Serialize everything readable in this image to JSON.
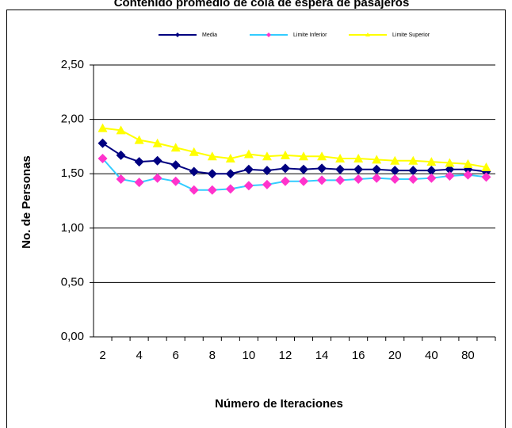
{
  "chart_data": {
    "type": "line",
    "title": "Contenido promedio de cola de espera de pasajeros",
    "xlabel": "Número de Iteraciones",
    "ylabel": "No. de Personas",
    "categories": [
      "2",
      null,
      "4",
      null,
      "6",
      null,
      "8",
      null,
      "10",
      null,
      "12",
      null,
      "14",
      null,
      "16",
      null,
      "20",
      null,
      "40",
      null,
      "80",
      null
    ],
    "series": [
      {
        "name": "Media",
        "color": "#000080",
        "marker_color": "#000080",
        "marker": "diamond",
        "values": [
          1.78,
          1.67,
          1.61,
          1.62,
          1.58,
          1.52,
          1.5,
          1.5,
          1.54,
          1.53,
          1.55,
          1.54,
          1.55,
          1.54,
          1.54,
          1.54,
          1.53,
          1.53,
          1.53,
          1.54,
          1.54,
          1.52
        ]
      },
      {
        "name": "Limite Inferior",
        "color": "#33ccff",
        "marker_color": "#ff33cc",
        "marker": "diamond",
        "values": [
          1.64,
          1.45,
          1.42,
          1.46,
          1.43,
          1.35,
          1.35,
          1.36,
          1.39,
          1.4,
          1.43,
          1.43,
          1.44,
          1.44,
          1.45,
          1.46,
          1.45,
          1.45,
          1.46,
          1.48,
          1.49,
          1.47
        ]
      },
      {
        "name": "Limite Superior",
        "color": "#ffff00",
        "marker_color": "#ffff00",
        "marker": "triangle",
        "values": [
          1.92,
          1.9,
          1.81,
          1.78,
          1.74,
          1.7,
          1.66,
          1.64,
          1.68,
          1.66,
          1.67,
          1.66,
          1.66,
          1.64,
          1.64,
          1.63,
          1.62,
          1.62,
          1.61,
          1.6,
          1.59,
          1.56
        ]
      }
    ],
    "ylim": [
      0,
      2.5
    ],
    "yticks": [
      {
        "value": 0,
        "label": "0,00"
      },
      {
        "value": 0.5,
        "label": "0,50"
      },
      {
        "value": 1,
        "label": "1,00"
      },
      {
        "value": 1.5,
        "label": "1,50"
      },
      {
        "value": 2,
        "label": "2,00"
      },
      {
        "value": 2.5,
        "label": "2,50"
      }
    ],
    "grid": true,
    "legend": "top"
  }
}
